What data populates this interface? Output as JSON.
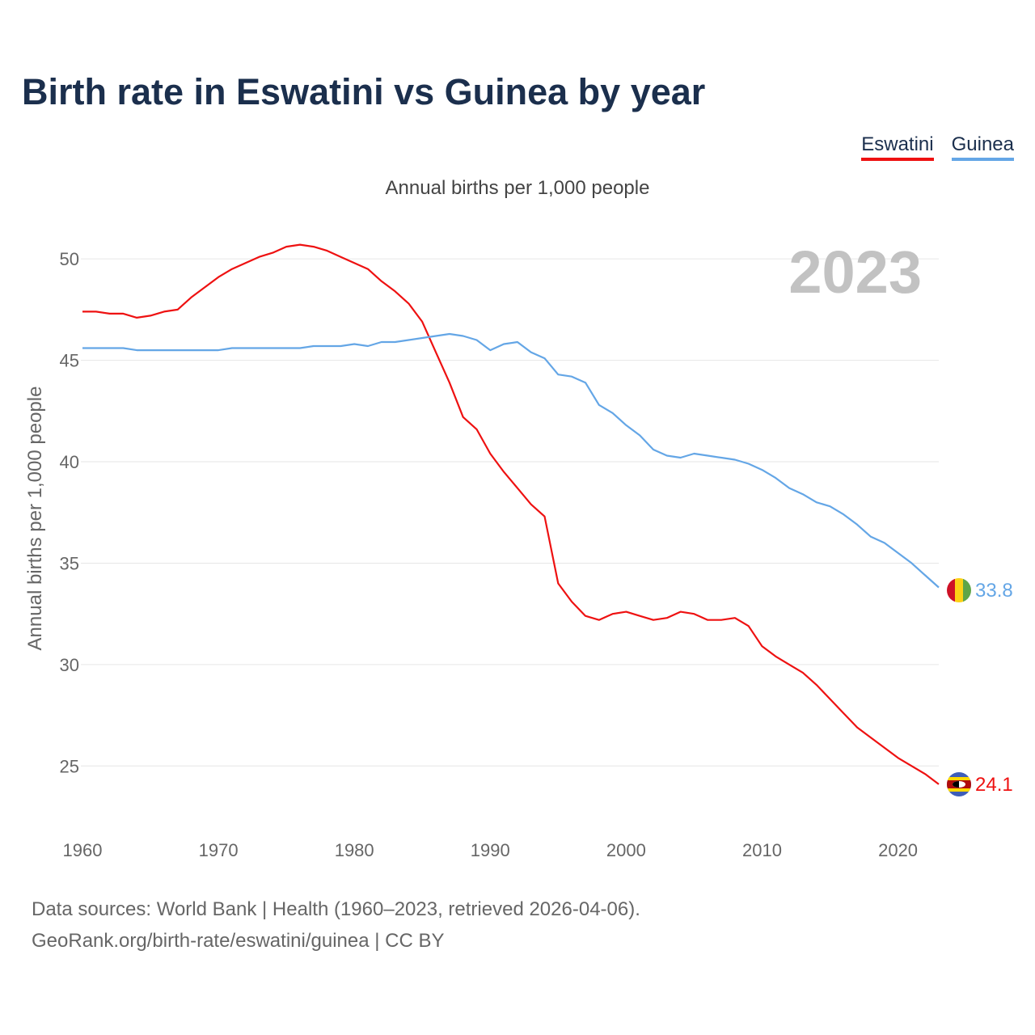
{
  "chart_data": {
    "type": "line",
    "title": "Birth rate in Eswatini vs Guinea by year",
    "subtitle": "Annual births per 1,000 people",
    "ylabel": "Annual births per 1,000 people",
    "xlabel": "",
    "year_label": "2023",
    "xlim": [
      1960,
      2023
    ],
    "ylim": [
      22.5,
      52
    ],
    "x_ticks": [
      1960,
      1970,
      1980,
      1990,
      2000,
      2010,
      2020
    ],
    "y_ticks": [
      25,
      30,
      35,
      40,
      45,
      50
    ],
    "grid": true,
    "legend_position": "top-right",
    "x": [
      1960,
      1961,
      1962,
      1963,
      1964,
      1965,
      1966,
      1967,
      1968,
      1969,
      1970,
      1971,
      1972,
      1973,
      1974,
      1975,
      1976,
      1977,
      1978,
      1979,
      1980,
      1981,
      1982,
      1983,
      1984,
      1985,
      1986,
      1987,
      1988,
      1989,
      1990,
      1991,
      1992,
      1993,
      1994,
      1995,
      1996,
      1997,
      1998,
      1999,
      2000,
      2001,
      2002,
      2003,
      2004,
      2005,
      2006,
      2007,
      2008,
      2009,
      2010,
      2011,
      2012,
      2013,
      2014,
      2015,
      2016,
      2017,
      2018,
      2019,
      2020,
      2021,
      2022,
      2023
    ],
    "series": [
      {
        "name": "Eswatini",
        "color": "#ee1111",
        "end_label": "24.1",
        "values": [
          47.4,
          47.4,
          47.3,
          47.3,
          47.1,
          47.2,
          47.4,
          47.5,
          48.1,
          48.6,
          49.1,
          49.5,
          49.8,
          50.1,
          50.3,
          50.6,
          50.7,
          50.6,
          50.4,
          50.1,
          49.8,
          49.5,
          48.9,
          48.4,
          47.8,
          46.9,
          45.4,
          43.9,
          42.2,
          41.6,
          40.4,
          39.5,
          38.7,
          37.9,
          37.3,
          34.0,
          33.1,
          32.4,
          32.2,
          32.5,
          32.6,
          32.4,
          32.2,
          32.3,
          32.6,
          32.5,
          32.2,
          32.2,
          32.3,
          31.9,
          30.9,
          30.4,
          30.0,
          29.6,
          29.0,
          28.3,
          27.6,
          26.9,
          26.4,
          25.9,
          25.4,
          25.0,
          24.6,
          24.1
        ]
      },
      {
        "name": "Guinea",
        "color": "#64a6e6",
        "end_label": "33.8",
        "values": [
          45.6,
          45.6,
          45.6,
          45.6,
          45.5,
          45.5,
          45.5,
          45.5,
          45.5,
          45.5,
          45.5,
          45.6,
          45.6,
          45.6,
          45.6,
          45.6,
          45.6,
          45.7,
          45.7,
          45.7,
          45.8,
          45.7,
          45.9,
          45.9,
          46.0,
          46.1,
          46.2,
          46.3,
          46.2,
          46.0,
          45.5,
          45.8,
          45.9,
          45.4,
          45.1,
          44.3,
          44.2,
          43.9,
          42.8,
          42.4,
          41.8,
          41.3,
          40.6,
          40.3,
          40.2,
          40.4,
          40.3,
          40.2,
          40.1,
          39.9,
          39.6,
          39.2,
          38.7,
          38.4,
          38.0,
          37.8,
          37.4,
          36.9,
          36.3,
          36.0,
          35.5,
          35.0,
          34.4,
          33.8
        ]
      }
    ]
  },
  "footer": {
    "sources": "Data sources: World Bank | Health (1960–2023, retrieved 2026-04-06).",
    "link": "GeoRank.org/birth-rate/eswatini/guinea",
    "license": " | CC BY"
  }
}
